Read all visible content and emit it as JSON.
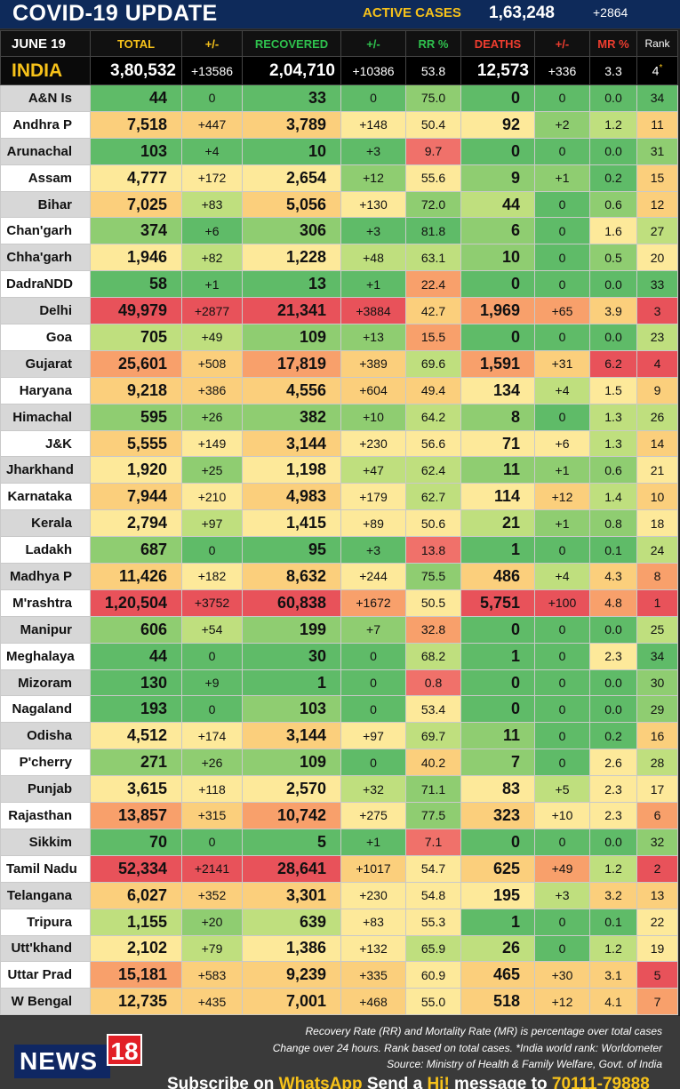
{
  "header": {
    "title": "COVID-19 UPDATE",
    "active_label": "ACTIVE CASES",
    "active_value": "1,63,248",
    "active_delta": "+2864"
  },
  "columns": {
    "date": "JUNE 19",
    "total": "TOTAL",
    "total_delta": "+/-",
    "recovered": "RECOVERED",
    "rec_delta": "+/-",
    "rr": "RR %",
    "deaths": "DEATHS",
    "death_delta": "+/-",
    "mr": "MR %",
    "rank": "Rank"
  },
  "india": {
    "name": "INDIA",
    "total": "3,80,532",
    "td": "+13586",
    "rec": "2,04,710",
    "rd": "+10386",
    "rr": "53.8",
    "deaths": "12,573",
    "dd": "+336",
    "mr": "3.3",
    "rank": "4"
  },
  "states": [
    {
      "name": "A&N Is",
      "total": "44",
      "td": "0",
      "rec": "33",
      "rd": "0",
      "rr": "75.0",
      "deaths": "0",
      "dd": "0",
      "mr": "0.0",
      "rank": "34"
    },
    {
      "name": "Andhra P",
      "total": "7,518",
      "td": "+447",
      "rec": "3,789",
      "rd": "+148",
      "rr": "50.4",
      "deaths": "92",
      "dd": "+2",
      "mr": "1.2",
      "rank": "11"
    },
    {
      "name": "Arunachal",
      "total": "103",
      "td": "+4",
      "rec": "10",
      "rd": "+3",
      "rr": "9.7",
      "deaths": "0",
      "dd": "0",
      "mr": "0.0",
      "rank": "31"
    },
    {
      "name": "Assam",
      "total": "4,777",
      "td": "+172",
      "rec": "2,654",
      "rd": "+12",
      "rr": "55.6",
      "deaths": "9",
      "dd": "+1",
      "mr": "0.2",
      "rank": "15"
    },
    {
      "name": "Bihar",
      "total": "7,025",
      "td": "+83",
      "rec": "5,056",
      "rd": "+130",
      "rr": "72.0",
      "deaths": "44",
      "dd": "0",
      "mr": "0.6",
      "rank": "12"
    },
    {
      "name": "Chan'garh",
      "total": "374",
      "td": "+6",
      "rec": "306",
      "rd": "+3",
      "rr": "81.8",
      "deaths": "6",
      "dd": "0",
      "mr": "1.6",
      "rank": "27"
    },
    {
      "name": "Chha'garh",
      "total": "1,946",
      "td": "+82",
      "rec": "1,228",
      "rd": "+48",
      "rr": "63.1",
      "deaths": "10",
      "dd": "0",
      "mr": "0.5",
      "rank": "20"
    },
    {
      "name": "DadraNDD",
      "total": "58",
      "td": "+1",
      "rec": "13",
      "rd": "+1",
      "rr": "22.4",
      "deaths": "0",
      "dd": "0",
      "mr": "0.0",
      "rank": "33"
    },
    {
      "name": "Delhi",
      "total": "49,979",
      "td": "+2877",
      "rec": "21,341",
      "rd": "+3884",
      "rr": "42.7",
      "deaths": "1,969",
      "dd": "+65",
      "mr": "3.9",
      "rank": "3"
    },
    {
      "name": "Goa",
      "total": "705",
      "td": "+49",
      "rec": "109",
      "rd": "+13",
      "rr": "15.5",
      "deaths": "0",
      "dd": "0",
      "mr": "0.0",
      "rank": "23"
    },
    {
      "name": "Gujarat",
      "total": "25,601",
      "td": "+508",
      "rec": "17,819",
      "rd": "+389",
      "rr": "69.6",
      "deaths": "1,591",
      "dd": "+31",
      "mr": "6.2",
      "rank": "4"
    },
    {
      "name": "Haryana",
      "total": "9,218",
      "td": "+386",
      "rec": "4,556",
      "rd": "+604",
      "rr": "49.4",
      "deaths": "134",
      "dd": "+4",
      "mr": "1.5",
      "rank": "9"
    },
    {
      "name": "Himachal",
      "total": "595",
      "td": "+26",
      "rec": "382",
      "rd": "+10",
      "rr": "64.2",
      "deaths": "8",
      "dd": "0",
      "mr": "1.3",
      "rank": "26"
    },
    {
      "name": "J&K",
      "total": "5,555",
      "td": "+149",
      "rec": "3,144",
      "rd": "+230",
      "rr": "56.6",
      "deaths": "71",
      "dd": "+6",
      "mr": "1.3",
      "rank": "14"
    },
    {
      "name": "Jharkhand",
      "total": "1,920",
      "td": "+25",
      "rec": "1,198",
      "rd": "+47",
      "rr": "62.4",
      "deaths": "11",
      "dd": "+1",
      "mr": "0.6",
      "rank": "21"
    },
    {
      "name": "Karnataka",
      "total": "7,944",
      "td": "+210",
      "rec": "4,983",
      "rd": "+179",
      "rr": "62.7",
      "deaths": "114",
      "dd": "+12",
      "mr": "1.4",
      "rank": "10"
    },
    {
      "name": "Kerala",
      "total": "2,794",
      "td": "+97",
      "rec": "1,415",
      "rd": "+89",
      "rr": "50.6",
      "deaths": "21",
      "dd": "+1",
      "mr": "0.8",
      "rank": "18"
    },
    {
      "name": "Ladakh",
      "total": "687",
      "td": "0",
      "rec": "95",
      "rd": "+3",
      "rr": "13.8",
      "deaths": "1",
      "dd": "0",
      "mr": "0.1",
      "rank": "24"
    },
    {
      "name": "Madhya P",
      "total": "11,426",
      "td": "+182",
      "rec": "8,632",
      "rd": "+244",
      "rr": "75.5",
      "deaths": "486",
      "dd": "+4",
      "mr": "4.3",
      "rank": "8"
    },
    {
      "name": "M'rashtra",
      "total": "1,20,504",
      "td": "+3752",
      "rec": "60,838",
      "rd": "+1672",
      "rr": "50.5",
      "deaths": "5,751",
      "dd": "+100",
      "mr": "4.8",
      "rank": "1"
    },
    {
      "name": "Manipur",
      "total": "606",
      "td": "+54",
      "rec": "199",
      "rd": "+7",
      "rr": "32.8",
      "deaths": "0",
      "dd": "0",
      "mr": "0.0",
      "rank": "25"
    },
    {
      "name": "Meghalaya",
      "total": "44",
      "td": "0",
      "rec": "30",
      "rd": "0",
      "rr": "68.2",
      "deaths": "1",
      "dd": "0",
      "mr": "2.3",
      "rank": "34"
    },
    {
      "name": "Mizoram",
      "total": "130",
      "td": "+9",
      "rec": "1",
      "rd": "0",
      "rr": "0.8",
      "deaths": "0",
      "dd": "0",
      "mr": "0.0",
      "rank": "30"
    },
    {
      "name": "Nagaland",
      "total": "193",
      "td": "0",
      "rec": "103",
      "rd": "0",
      "rr": "53.4",
      "deaths": "0",
      "dd": "0",
      "mr": "0.0",
      "rank": "29"
    },
    {
      "name": "Odisha",
      "total": "4,512",
      "td": "+174",
      "rec": "3,144",
      "rd": "+97",
      "rr": "69.7",
      "deaths": "11",
      "dd": "0",
      "mr": "0.2",
      "rank": "16"
    },
    {
      "name": "P'cherry",
      "total": "271",
      "td": "+26",
      "rec": "109",
      "rd": "0",
      "rr": "40.2",
      "deaths": "7",
      "dd": "0",
      "mr": "2.6",
      "rank": "28"
    },
    {
      "name": "Punjab",
      "total": "3,615",
      "td": "+118",
      "rec": "2,570",
      "rd": "+32",
      "rr": "71.1",
      "deaths": "83",
      "dd": "+5",
      "mr": "2.3",
      "rank": "17"
    },
    {
      "name": "Rajasthan",
      "total": "13,857",
      "td": "+315",
      "rec": "10,742",
      "rd": "+275",
      "rr": "77.5",
      "deaths": "323",
      "dd": "+10",
      "mr": "2.3",
      "rank": "6"
    },
    {
      "name": "Sikkim",
      "total": "70",
      "td": "0",
      "rec": "5",
      "rd": "+1",
      "rr": "7.1",
      "deaths": "0",
      "dd": "0",
      "mr": "0.0",
      "rank": "32"
    },
    {
      "name": "Tamil Nadu",
      "total": "52,334",
      "td": "+2141",
      "rec": "28,641",
      "rd": "+1017",
      "rr": "54.7",
      "deaths": "625",
      "dd": "+49",
      "mr": "1.2",
      "rank": "2"
    },
    {
      "name": "Telangana",
      "total": "6,027",
      "td": "+352",
      "rec": "3,301",
      "rd": "+230",
      "rr": "54.8",
      "deaths": "195",
      "dd": "+3",
      "mr": "3.2",
      "rank": "13"
    },
    {
      "name": "Tripura",
      "total": "1,155",
      "td": "+20",
      "rec": "639",
      "rd": "+83",
      "rr": "55.3",
      "deaths": "1",
      "dd": "0",
      "mr": "0.1",
      "rank": "22"
    },
    {
      "name": "Utt'khand",
      "total": "2,102",
      "td": "+79",
      "rec": "1,386",
      "rd": "+132",
      "rr": "65.9",
      "deaths": "26",
      "dd": "0",
      "mr": "1.2",
      "rank": "19"
    },
    {
      "name": "Uttar Prad",
      "total": "15,181",
      "td": "+583",
      "rec": "9,239",
      "rd": "+335",
      "rr": "60.9",
      "deaths": "465",
      "dd": "+30",
      "mr": "3.1",
      "rank": "5"
    },
    {
      "name": "W Bengal",
      "total": "12,735",
      "td": "+435",
      "rec": "7,001",
      "rd": "+468",
      "rr": "55.0",
      "deaths": "518",
      "dd": "+12",
      "mr": "4.1",
      "rank": "7"
    }
  ],
  "footer": {
    "logo_text": "NEWS",
    "logo_num": "18",
    "note1": "Recovery Rate (RR) and Mortality Rate (MR) is percentage over total cases",
    "note2": "Change over 24 hours. Rank based on total cases. *India world rank: Worldometer",
    "note3": "Source: Ministry of Health & Family Welfare, Govt. of India",
    "subscribe_pre": "Subscribe on ",
    "subscribe_app": "WhatsApp",
    "subscribe_mid": " Send a ",
    "subscribe_hi": "Hi!",
    "subscribe_post": " message to ",
    "subscribe_num": "70111-79888"
  },
  "colors": {
    "header_bg": "#0e2a5a",
    "accent_yellow": "#f7c21a",
    "green_dark": "#5fbb68",
    "green": "#8fcd71",
    "green_light": "#bfdf7e",
    "yellow": "#fde99a",
    "orange_light": "#fbcf7c",
    "orange": "#f8a06b",
    "red": "#f0716a",
    "red_dark": "#e8525a"
  }
}
